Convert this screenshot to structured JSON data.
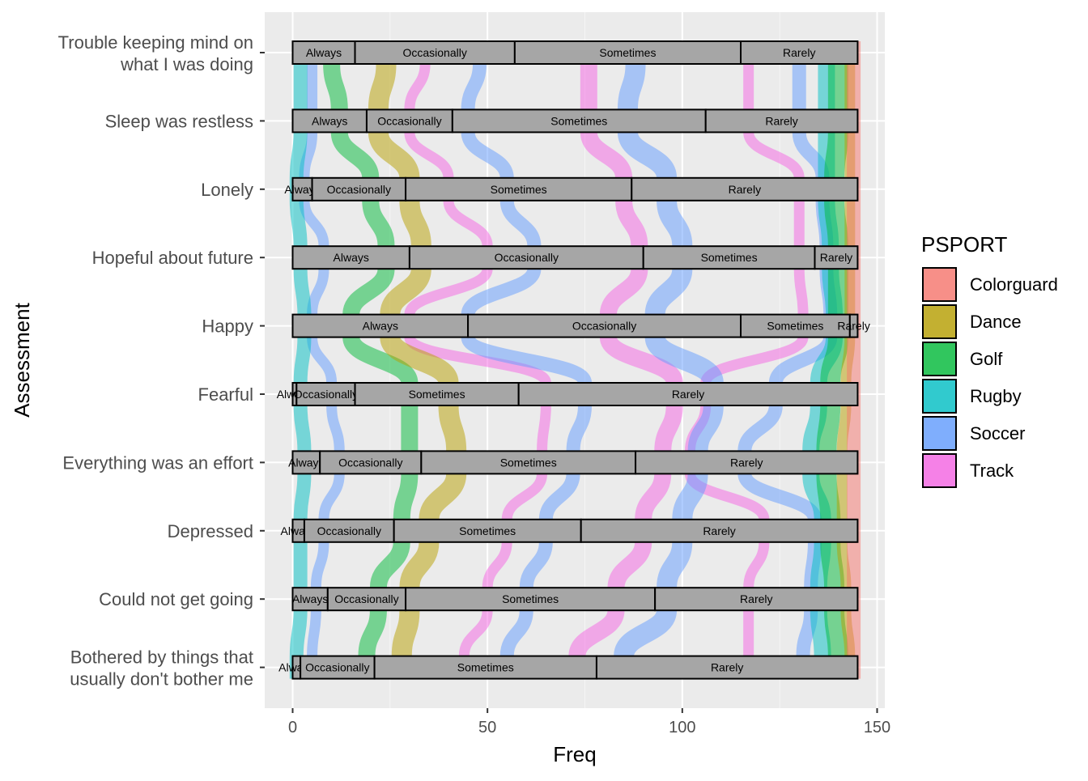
{
  "chart_data": {
    "type": "alluvial",
    "xlabel": "Freq",
    "ylabel": "Assessment",
    "xlim": [
      0,
      145
    ],
    "x_ticks": [
      0,
      50,
      100,
      150
    ],
    "grid": true,
    "legend": {
      "title": "PSPORT",
      "position": "right",
      "entries": [
        {
          "name": "Colorguard",
          "color": "#F8766D"
        },
        {
          "name": "Dance",
          "color": "#B79F00"
        },
        {
          "name": "Golf",
          "color": "#00BA38"
        },
        {
          "name": "Rugby",
          "color": "#00BFC4"
        },
        {
          "name": "Soccer",
          "color": "#619CFF"
        },
        {
          "name": "Track",
          "color": "#F564E3"
        }
      ]
    },
    "strata": [
      {
        "assessment": "Trouble keeping mind on\nwhat I was doing",
        "segments": [
          {
            "label": "Always",
            "from": 0,
            "to": 16
          },
          {
            "label": "Occasionally",
            "from": 16,
            "to": 57
          },
          {
            "label": "Sometimes",
            "from": 57,
            "to": 115
          },
          {
            "label": "Rarely",
            "from": 115,
            "to": 145
          }
        ]
      },
      {
        "assessment": "Sleep was restless",
        "segments": [
          {
            "label": "Always",
            "from": 0,
            "to": 19
          },
          {
            "label": "Occasionally",
            "from": 19,
            "to": 41
          },
          {
            "label": "Sometimes",
            "from": 41,
            "to": 106
          },
          {
            "label": "Rarely",
            "from": 106,
            "to": 145
          }
        ]
      },
      {
        "assessment": "Lonely",
        "segments": [
          {
            "label": "Always",
            "from": 0,
            "to": 5
          },
          {
            "label": "Occasionally",
            "from": 5,
            "to": 29
          },
          {
            "label": "Sometimes",
            "from": 29,
            "to": 87
          },
          {
            "label": "Rarely",
            "from": 87,
            "to": 145
          }
        ]
      },
      {
        "assessment": "Hopeful about future",
        "segments": [
          {
            "label": "Always",
            "from": 0,
            "to": 30
          },
          {
            "label": "Occasionally",
            "from": 30,
            "to": 90
          },
          {
            "label": "Sometimes",
            "from": 90,
            "to": 134
          },
          {
            "label": "Rarely",
            "from": 134,
            "to": 145
          }
        ]
      },
      {
        "assessment": "Happy",
        "segments": [
          {
            "label": "Always",
            "from": 0,
            "to": 45
          },
          {
            "label": "Occasionally",
            "from": 45,
            "to": 115
          },
          {
            "label": "Sometimes",
            "from": 115,
            "to": 143
          },
          {
            "label": "Rarely",
            "from": 143,
            "to": 145
          }
        ]
      },
      {
        "assessment": "Fearful",
        "segments": [
          {
            "label": "Always",
            "from": 0,
            "to": 1
          },
          {
            "label": "Occasionally",
            "from": 1,
            "to": 16
          },
          {
            "label": "Sometimes",
            "from": 16,
            "to": 58
          },
          {
            "label": "Rarely",
            "from": 58,
            "to": 145
          }
        ]
      },
      {
        "assessment": "Everything was an effort",
        "segments": [
          {
            "label": "Always",
            "from": 0,
            "to": 7
          },
          {
            "label": "Occasionally",
            "from": 7,
            "to": 33
          },
          {
            "label": "Sometimes",
            "from": 33,
            "to": 88
          },
          {
            "label": "Rarely",
            "from": 88,
            "to": 145
          }
        ]
      },
      {
        "assessment": "Depressed",
        "segments": [
          {
            "label": "Always",
            "from": 0,
            "to": 3
          },
          {
            "label": "Occasionally",
            "from": 3,
            "to": 26
          },
          {
            "label": "Sometimes",
            "from": 26,
            "to": 74
          },
          {
            "label": "Rarely",
            "from": 74,
            "to": 145
          }
        ]
      },
      {
        "assessment": "Could not get going",
        "segments": [
          {
            "label": "Always",
            "from": 0,
            "to": 9
          },
          {
            "label": "Occasionally",
            "from": 9,
            "to": 29
          },
          {
            "label": "Sometimes",
            "from": 29,
            "to": 93
          },
          {
            "label": "Rarely",
            "from": 93,
            "to": 145
          }
        ]
      },
      {
        "assessment": "Bothered by things that\nusually don't bother me",
        "segments": [
          {
            "label": "Always",
            "from": 0,
            "to": 2
          },
          {
            "label": "Occasionally",
            "from": 2,
            "to": 21
          },
          {
            "label": "Sometimes",
            "from": 21,
            "to": 78
          },
          {
            "label": "Rarely",
            "from": 78,
            "to": 145
          }
        ]
      }
    ],
    "flow_bands": [
      {
        "sport": "Track",
        "x": [
          117,
          117,
          130,
          130,
          131,
          106,
          102,
          121,
          117,
          117
        ]
      },
      {
        "sport": "Soccer",
        "x": [
          130,
          130,
          136,
          137,
          138,
          124,
          116,
          134,
          133,
          131
        ]
      },
      {
        "sport": "Rugby",
        "x": [
          137,
          137,
          137,
          138,
          139,
          135,
          133,
          136,
          135,
          136
        ]
      },
      {
        "sport": "Golf",
        "x": [
          140,
          140,
          139,
          140,
          140,
          138,
          137,
          138,
          139,
          140
        ]
      },
      {
        "sport": "Dance",
        "x": [
          143,
          143,
          143,
          143,
          143,
          142,
          141,
          141,
          142,
          143
        ]
      },
      {
        "sport": "Colorguard",
        "x": [
          144,
          144,
          144,
          144,
          144,
          144,
          144,
          144,
          144,
          144
        ]
      },
      {
        "sport": "Track",
        "x": [
          76,
          76,
          85,
          89,
          81,
          98,
          95,
          90,
          83,
          73
        ]
      },
      {
        "sport": "Soccer",
        "x": [
          88,
          86,
          96,
          100,
          93,
          108,
          104,
          100,
          96,
          85
        ]
      },
      {
        "sport": "Track",
        "x": [
          34,
          30,
          40,
          50,
          30,
          65,
          64,
          55,
          50,
          44
        ]
      },
      {
        "sport": "Soccer",
        "x": [
          48,
          45,
          55,
          62,
          45,
          75,
          72,
          65,
          60,
          55
        ]
      },
      {
        "sport": "Golf",
        "x": [
          10,
          12,
          20,
          24,
          15,
          30,
          30,
          28,
          22,
          19
        ]
      },
      {
        "sport": "Dance",
        "x": [
          24,
          22,
          30,
          33,
          25,
          40,
          42,
          35,
          30,
          28
        ]
      },
      {
        "sport": "Soccer",
        "x": [
          5,
          5,
          3,
          8,
          5,
          10,
          12,
          8,
          6,
          5
        ]
      },
      {
        "sport": "Rugby",
        "x": [
          2,
          2,
          1,
          2,
          3,
          2,
          3,
          2,
          2,
          1
        ]
      }
    ]
  }
}
